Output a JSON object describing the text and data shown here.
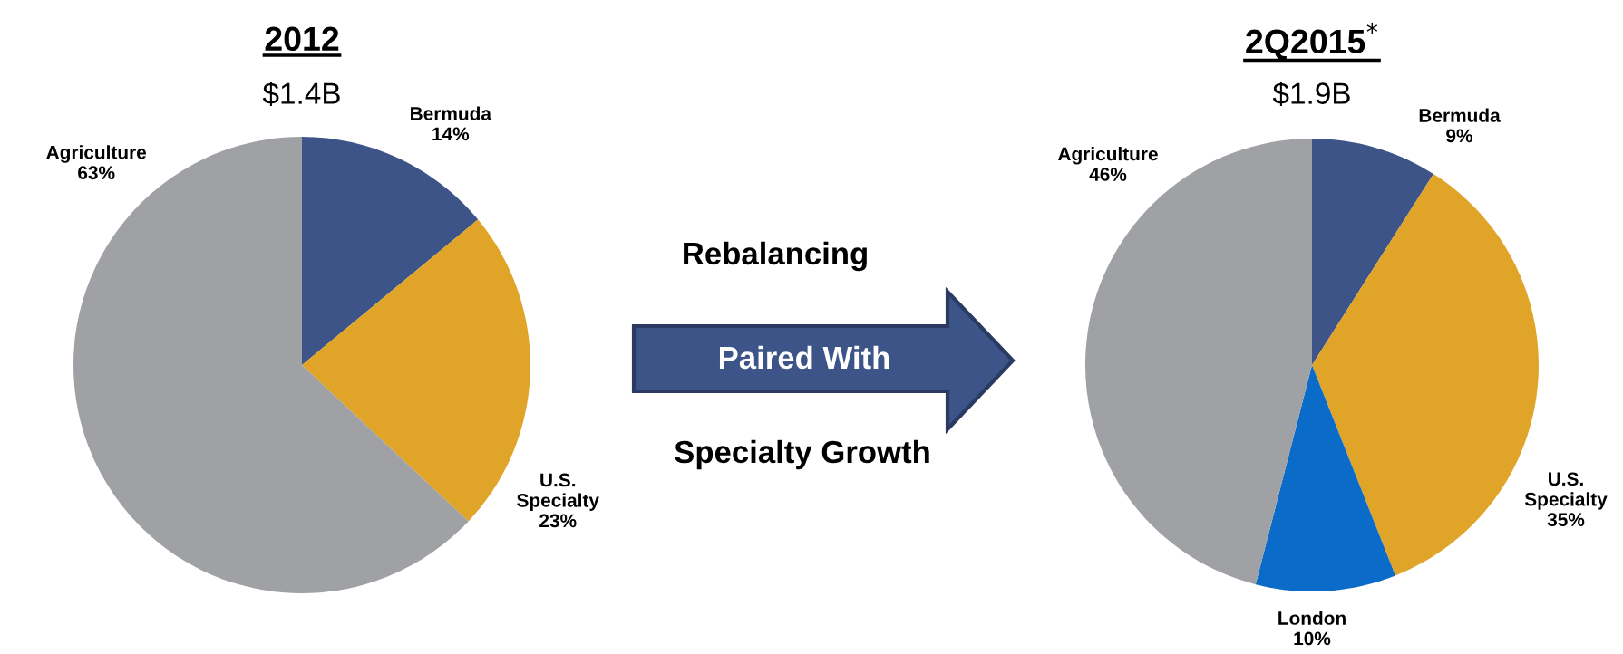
{
  "chart_data": [
    {
      "type": "pie",
      "title": "2012",
      "subtitle": "$1.4B",
      "categories": [
        "Bermuda",
        "U.S. Specialty",
        "Agriculture"
      ],
      "values": [
        14,
        23,
        63
      ],
      "value_labels": [
        "14%",
        "23%",
        "63%"
      ],
      "colors": [
        "#3d5488",
        "#e0a528",
        "#a0a1a5"
      ]
    },
    {
      "type": "other",
      "annotations": [
        "Rebalancing",
        "Paired With",
        "Specialty Growth"
      ]
    },
    {
      "type": "pie",
      "title": "2Q2015$^{*}$",
      "subtitle": "$1.9B",
      "categories": [
        "Bermuda",
        "U.S. Specialty",
        "London",
        "Agriculture"
      ],
      "values": [
        9,
        35,
        10,
        46
      ],
      "value_labels": [
        "9%",
        "35%",
        "10%",
        "46%"
      ],
      "colors": [
        "#3d5488",
        "#e0a528",
        "#0a6bc8",
        "#a0a1a5"
      ]
    }
  ]
}
